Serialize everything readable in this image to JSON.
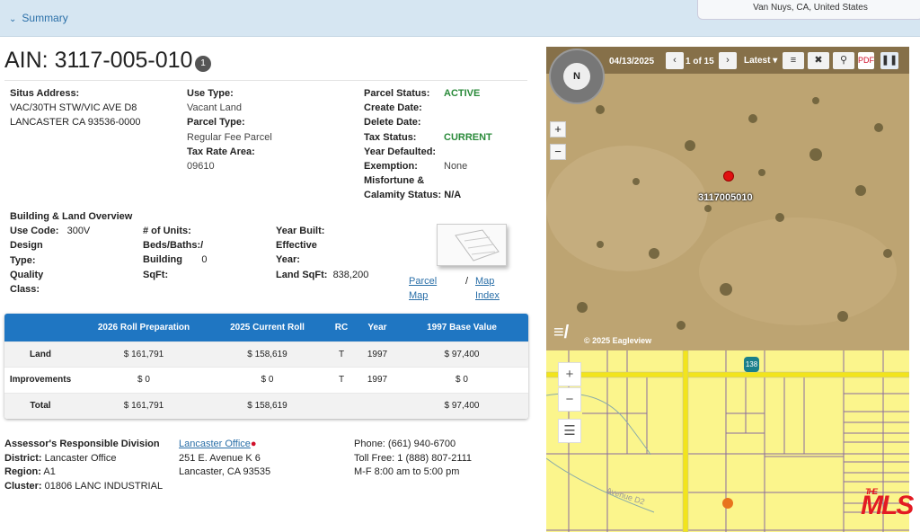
{
  "header": {
    "summary_label": "Summary",
    "location": "Van Nuys, CA, United States"
  },
  "parcel": {
    "ain_label": "AIN:",
    "ain": "3117-005-010",
    "badge": "1"
  },
  "address": {
    "label": "Situs Address:",
    "line1": "VAC/30TH STW/VIC AVE D8",
    "line2": "LANCASTER CA 93536-0000"
  },
  "use": {
    "use_type_label": "Use Type:",
    "use_type": "Vacant Land",
    "parcel_type_label": "Parcel Type:",
    "parcel_type": "Regular Fee Parcel",
    "tra_label": "Tax Rate Area:",
    "tra": "09610"
  },
  "status": {
    "parcel_status_label": "Parcel Status:",
    "parcel_status": "ACTIVE",
    "create_label": "Create Date:",
    "delete_label": "Delete Date:",
    "tax_status_label": "Tax Status:",
    "tax_status": "CURRENT",
    "year_defaulted_label": "Year Defaulted:",
    "exemption_label": "Exemption:",
    "exemption": "None",
    "misfortune_label": "Misfortune &",
    "calamity_label": "Calamity Status:",
    "calamity": "N/A"
  },
  "overview": {
    "title": "Building & Land Overview",
    "use_code_label": "Use Code:",
    "use_code": "300V",
    "design_label1": "Design",
    "design_label2": "Type:",
    "quality_label1": "Quality",
    "quality_label2": "Class:",
    "units_label": "# of Units:",
    "beds_label": "Beds/Baths:/",
    "building_label": "Building",
    "building_value": "0",
    "sqft_label": "SqFt:",
    "year_built_label": "Year Built:",
    "effective_label1": "Effective",
    "effective_label2": "Year:",
    "land_sqft_label": "Land SqFt:",
    "land_sqft": "838,200",
    "parcel_map_1": "Parcel",
    "parcel_map_2": "Map",
    "slash": "/",
    "map_index_1": "Map",
    "map_index_2": "Index"
  },
  "values_table": {
    "headers": [
      "",
      "2026 Roll Preparation",
      "2025 Current Roll",
      "RC",
      "Year",
      "1997 Base Value"
    ],
    "rows": [
      [
        "Land",
        "$ 161,791",
        "$ 158,619",
        "T",
        "1997",
        "$ 97,400"
      ],
      [
        "Improvements",
        "$ 0",
        "$ 0",
        "T",
        "1997",
        "$ 0"
      ],
      [
        "Total",
        "$ 161,791",
        "$ 158,619",
        "",
        "",
        "$ 97,400"
      ]
    ]
  },
  "division": {
    "title": "Assessor's Responsible Division",
    "district_label": "District:",
    "district": "Lancaster Office",
    "region_label": "Region:",
    "region": "A1",
    "cluster_label": "Cluster:",
    "cluster": "01806 LANC INDUSTRIAL",
    "office_link": "Lancaster Office",
    "addr1": "251 E. Avenue K 6",
    "addr2": "Lancaster, CA 93535",
    "phone": "Phone: (661) 940-6700",
    "tollfree": "Toll Free: 1 (888) 807-2111",
    "hours": "M-F 8:00 am to 5:00 pm"
  },
  "aerial": {
    "date": "04/13/2025",
    "page": "1 of 15",
    "latest": "Latest",
    "parcel_label": "3117005010",
    "credit": "© 2025 Eagleview",
    "compass_n": "N"
  },
  "streetmap": {
    "route": "138",
    "road_label": "Avenue D2",
    "logo": "THE MLS .COM"
  },
  "colors": {
    "accent": "#1f76c2",
    "status_green": "#2a8a3a",
    "map_yellow": "#fbf58c",
    "marker": "#e8731e"
  }
}
